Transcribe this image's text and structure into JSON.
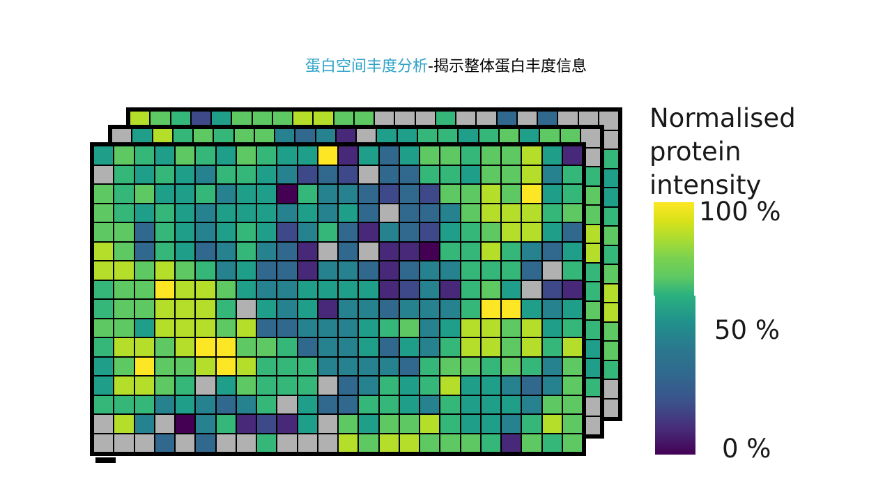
{
  "slide_title": {
    "highlight": "蛋白空间丰度分析",
    "rest": "-揭示整体蛋白丰度信息",
    "highlight_color": "#2fa3c7",
    "rest_color": "#000000"
  },
  "chart_data": {
    "type": "heatmap",
    "title": "蛋白空间丰度分析-揭示整体蛋白丰度信息",
    "description_visible": "three stacked tissue-section heatmap layers, viridis colormap, gray = missing value",
    "grid": {
      "cols": 24,
      "rows": 16
    },
    "palette": {
      "0": "#440154",
      "1": "#482878",
      "2": "#3e4989",
      "3": "#31688e",
      "4": "#26828e",
      "5": "#1f9e89",
      "6": "#35b779",
      "7": "#5ec962",
      "8": "#b5de2b",
      "9": "#fde725",
      "G": "#b1b1b1"
    },
    "palette_value_percent": {
      "0": 0,
      "1": 11,
      "2": 22,
      "3": 33,
      "4": 44,
      "5": 56,
      "6": 67,
      "7": 78,
      "8": 89,
      "9": 100,
      "G": null
    },
    "missing_value_key": "G",
    "layers": {
      "front": {
        "rows": [
          "576576576559153577677851",
          "G656546654232G3366577846",
          "767556455064432327787956",
          "76565455545453G334788867",
          "773654565246314325678853",
          "87365346431G3G1106686435",
          "8878764533144313446663G6",
          "677988754455551241675G21",
          "6778886G5451443444699545",
          "775888783344456745887856",
          "688789977634453546887868",
          "579778986664444367767647",
          "58876G57666G346568554347",
          "666454346G53366546555477",
          "G84G0461215G757786554687",
          "GGG3G3GG6GGG878877761767"
        ]
      },
      "middle": {
        "top_row": "G58676774341G5566567577G",
        "right_col": "G677886676556GG"
      },
      "back": {
        "top_row": "876257778877GGG6GG3G3GGG",
        "right_col": "G655676788776GG"
      }
    },
    "legend": {
      "title_lines": [
        "Normalised",
        "protein",
        "intensity"
      ],
      "tick_labels": {
        "top": "100 %",
        "middle": "50 %",
        "bottom": "0 %"
      },
      "orientation": "vertical",
      "gradient_top_to_bottom": [
        "#fde725",
        "#d8e219",
        "#aadc32",
        "#7ad151",
        "#5ec962",
        "#2ab07f",
        "#21918c",
        "#2a788e",
        "#31688e",
        "#3b528b",
        "#472d7b",
        "#440154"
      ],
      "segment1_stops": [
        "#fde725",
        "#d8e219",
        "#aadc32",
        "#7ad151",
        "#5ec962",
        "#2ab07f"
      ],
      "segment2_stops": [
        "#2ab07f",
        "#21918c",
        "#2a788e",
        "#31688e",
        "#3b528b",
        "#472d7b",
        "#440154"
      ]
    }
  }
}
